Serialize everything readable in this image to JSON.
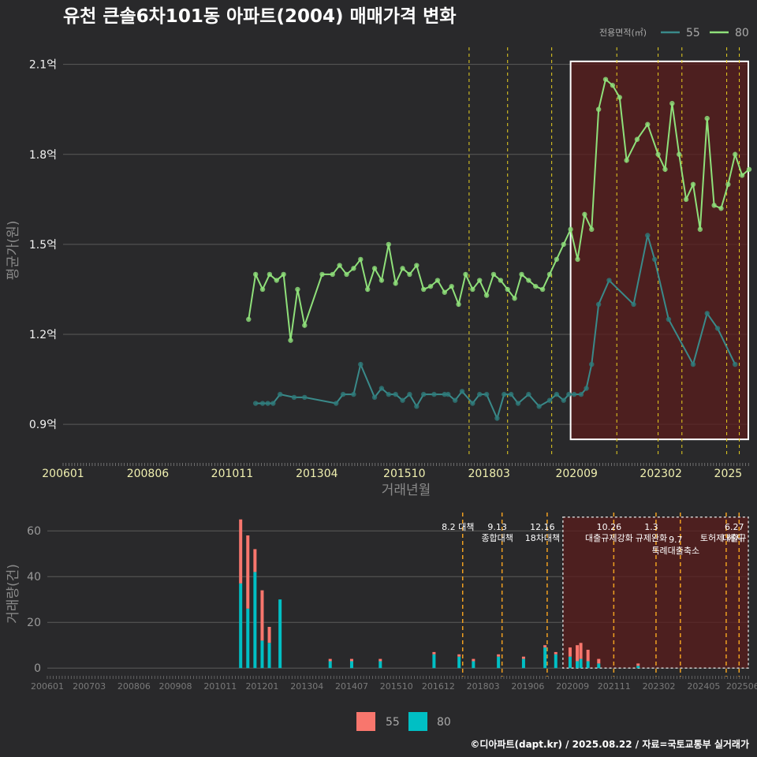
{
  "title": "유천 큰솔6차101동 아파트(2004) 매매가격 변화",
  "footer": "©디아파트(dapt.kr) / 2025.08.22 / 자료=국토교통부 실거래가",
  "colors": {
    "background": "#29292b",
    "series_55_line": "#3a8a8a",
    "series_55_point": "#2e7b7b",
    "series_80": "#8fe07a",
    "bar_55": "#f8766d",
    "bar_80": "#00bfc4",
    "policy_line": "#e8d020",
    "policy_line_bottom": "#f0a020",
    "highlight_fill": "#5a1c1c",
    "highlight_border": "#ffffff",
    "gridline": "#5a5a5a"
  },
  "chart_data": [
    {
      "type": "line",
      "title": "유천 큰솔6차101동 아파트(2004) 매매가격 변화",
      "xlabel": "거래년월",
      "ylabel": "평균가(원)",
      "x_ticks": [
        "200601",
        "200806",
        "201011",
        "201304",
        "201510",
        "201803",
        "202009",
        "202302",
        "2025"
      ],
      "y_ticks": [
        {
          "value": 0.9,
          "label": "0.9억"
        },
        {
          "value": 1.2,
          "label": "1.2억"
        },
        {
          "value": 1.5,
          "label": "1.5억"
        },
        {
          "value": 1.8,
          "label": "1.8억"
        },
        {
          "value": 2.1,
          "label": "2.1억"
        }
      ],
      "xlim": [
        2006.0,
        2025.6
      ],
      "ylim": [
        0.79,
        2.17
      ],
      "unit": "억",
      "legend_title": "전용면적(㎡)",
      "legend_position": "top-right",
      "highlight_range": {
        "x": [
          2020.5,
          2025.6
        ],
        "y": [
          0.85,
          2.11
        ]
      },
      "policy_dates": [
        2017.6,
        2018.7,
        2019.96,
        2021.82,
        2023.0,
        2023.68,
        2024.96,
        2025.32
      ],
      "series": [
        {
          "name": "55",
          "x": [
            2011.5,
            2011.7,
            2011.85,
            2012.0,
            2012.2,
            2012.6,
            2012.9,
            2013.8,
            2014.0,
            2014.3,
            2014.5,
            2014.9,
            2015.1,
            2015.3,
            2015.5,
            2015.7,
            2015.9,
            2016.1,
            2016.3,
            2016.6,
            2016.9,
            2017.0,
            2017.2,
            2017.4,
            2017.7,
            2017.9,
            2018.1,
            2018.4,
            2018.6,
            2018.8,
            2019.0,
            2019.3,
            2019.6,
            2019.9,
            2020.1,
            2020.3,
            2020.45,
            2020.6,
            2020.8,
            2020.95,
            2021.1,
            2021.3,
            2021.6,
            2022.3,
            2022.7,
            2022.9,
            2023.3,
            2024.0,
            2024.4,
            2024.7,
            2025.2
          ],
          "y": [
            0.97,
            0.97,
            0.97,
            0.97,
            1.0,
            0.99,
            0.99,
            0.97,
            1.0,
            1.0,
            1.1,
            0.99,
            1.02,
            1.0,
            1.0,
            0.98,
            1.0,
            0.96,
            1.0,
            1.0,
            1.0,
            1.0,
            0.98,
            1.01,
            0.97,
            1.0,
            1.0,
            0.92,
            1.0,
            1.0,
            0.97,
            1.0,
            0.96,
            0.98,
            1.0,
            0.98,
            1.0,
            1.0,
            1.0,
            1.02,
            1.1,
            1.3,
            1.38,
            1.3,
            1.53,
            1.45,
            1.25,
            1.1,
            1.27,
            1.22,
            1.1
          ]
        },
        {
          "name": "80",
          "x": [
            2011.3,
            2011.5,
            2011.7,
            2011.9,
            2012.1,
            2012.3,
            2012.5,
            2012.7,
            2012.9,
            2013.4,
            2013.7,
            2013.9,
            2014.1,
            2014.3,
            2014.5,
            2014.7,
            2014.9,
            2015.1,
            2015.3,
            2015.5,
            2015.7,
            2015.9,
            2016.1,
            2016.3,
            2016.5,
            2016.7,
            2016.9,
            2017.1,
            2017.3,
            2017.5,
            2017.7,
            2017.9,
            2018.1,
            2018.3,
            2018.5,
            2018.7,
            2018.9,
            2019.1,
            2019.3,
            2019.5,
            2019.7,
            2019.9,
            2020.1,
            2020.3,
            2020.5,
            2020.7,
            2020.9,
            2021.1,
            2021.3,
            2021.5,
            2021.7,
            2021.9,
            2022.1,
            2022.4,
            2022.7,
            2023.0,
            2023.2,
            2023.4,
            2023.6,
            2023.8,
            2024.0,
            2024.2,
            2024.4,
            2024.6,
            2024.8,
            2025.0,
            2025.2,
            2025.4,
            2025.6
          ],
          "y": [
            1.25,
            1.4,
            1.35,
            1.4,
            1.38,
            1.4,
            1.18,
            1.35,
            1.23,
            1.4,
            1.4,
            1.43,
            1.4,
            1.42,
            1.45,
            1.35,
            1.42,
            1.38,
            1.5,
            1.37,
            1.42,
            1.4,
            1.43,
            1.35,
            1.36,
            1.38,
            1.34,
            1.36,
            1.3,
            1.4,
            1.35,
            1.38,
            1.33,
            1.4,
            1.38,
            1.35,
            1.32,
            1.4,
            1.38,
            1.36,
            1.35,
            1.4,
            1.45,
            1.5,
            1.55,
            1.45,
            1.6,
            1.55,
            1.95,
            2.05,
            2.03,
            1.99,
            1.78,
            1.85,
            1.9,
            1.8,
            1.75,
            1.97,
            1.8,
            1.65,
            1.7,
            1.55,
            1.92,
            1.63,
            1.62,
            1.7,
            1.8,
            1.73,
            1.75
          ]
        }
      ]
    },
    {
      "type": "bar",
      "ylabel": "거래량(건)",
      "x_ticks": [
        "200601",
        "200703",
        "200806",
        "200908",
        "201011",
        "201201",
        "201304",
        "201407",
        "201510",
        "201612",
        "201803",
        "201906",
        "202009",
        "202111",
        "202302",
        "202405",
        "202506"
      ],
      "y_ticks": [
        0,
        20,
        40,
        60
      ],
      "xlim": [
        2006.0,
        2025.6
      ],
      "ylim": [
        -2,
        68
      ],
      "highlight_range": {
        "x": [
          2020.4,
          2025.6
        ],
        "y": [
          0,
          66
        ]
      },
      "legend_position": "bottom",
      "series": [
        {
          "name": "55",
          "x": [
            2011.4,
            2011.6,
            2011.8,
            2012.0,
            2012.2,
            2013.9,
            2014.5,
            2015.3,
            2016.8,
            2017.5,
            2017.9,
            2018.6,
            2019.3,
            2019.9,
            2020.2,
            2020.6,
            2020.8,
            2020.9,
            2021.1,
            2021.4,
            2022.5
          ],
          "values": [
            65,
            58,
            52,
            34,
            18,
            2,
            2,
            2,
            3,
            2,
            3,
            2,
            3,
            6,
            4,
            9,
            10,
            11,
            8,
            4,
            2
          ]
        },
        {
          "name": "80",
          "x": [
            2011.4,
            2011.6,
            2011.8,
            2012.0,
            2012.2,
            2012.5,
            2013.9,
            2014.5,
            2015.3,
            2016.8,
            2017.5,
            2017.9,
            2018.6,
            2019.3,
            2019.9,
            2020.2,
            2020.6,
            2020.8,
            2020.9,
            2021.1,
            2021.4,
            2022.5
          ],
          "values": [
            37,
            26,
            42,
            12,
            11,
            30,
            3,
            3,
            3,
            6,
            5,
            3,
            5,
            4,
            9,
            6,
            5,
            3,
            4,
            3,
            2,
            1
          ]
        }
      ],
      "annotations": [
        {
          "date": "8.2 대책",
          "x": 2017.6,
          "lines": [
            "8.2 대책"
          ]
        },
        {
          "date": "9.13",
          "x": 2018.7,
          "lines": [
            "9.13",
            "종합대책"
          ]
        },
        {
          "date": "12.16",
          "x": 2019.96,
          "lines": [
            "12.16",
            "18차대책"
          ]
        },
        {
          "date": "10.26",
          "x": 2021.82,
          "lines": [
            "10.26",
            "대출규제강화"
          ]
        },
        {
          "date": "1.3",
          "x": 2023.0,
          "lines": [
            "1.3",
            "규제완화"
          ]
        },
        {
          "date": "9.7",
          "x": 2023.68,
          "lines": [
            "9.7",
            "특례대출축소"
          ]
        },
        {
          "date": "토허제",
          "x": 2024.96,
          "lines": [
            "",
            "토허제 해지"
          ]
        },
        {
          "date": "6.27",
          "x": 2025.32,
          "lines": [
            "6.27",
            "대출규"
          ]
        }
      ]
    }
  ],
  "legends": {
    "top": {
      "title": "전용면적(㎡)",
      "items": [
        "55",
        "80"
      ]
    },
    "bottom": {
      "items": [
        "55",
        "80"
      ]
    }
  }
}
